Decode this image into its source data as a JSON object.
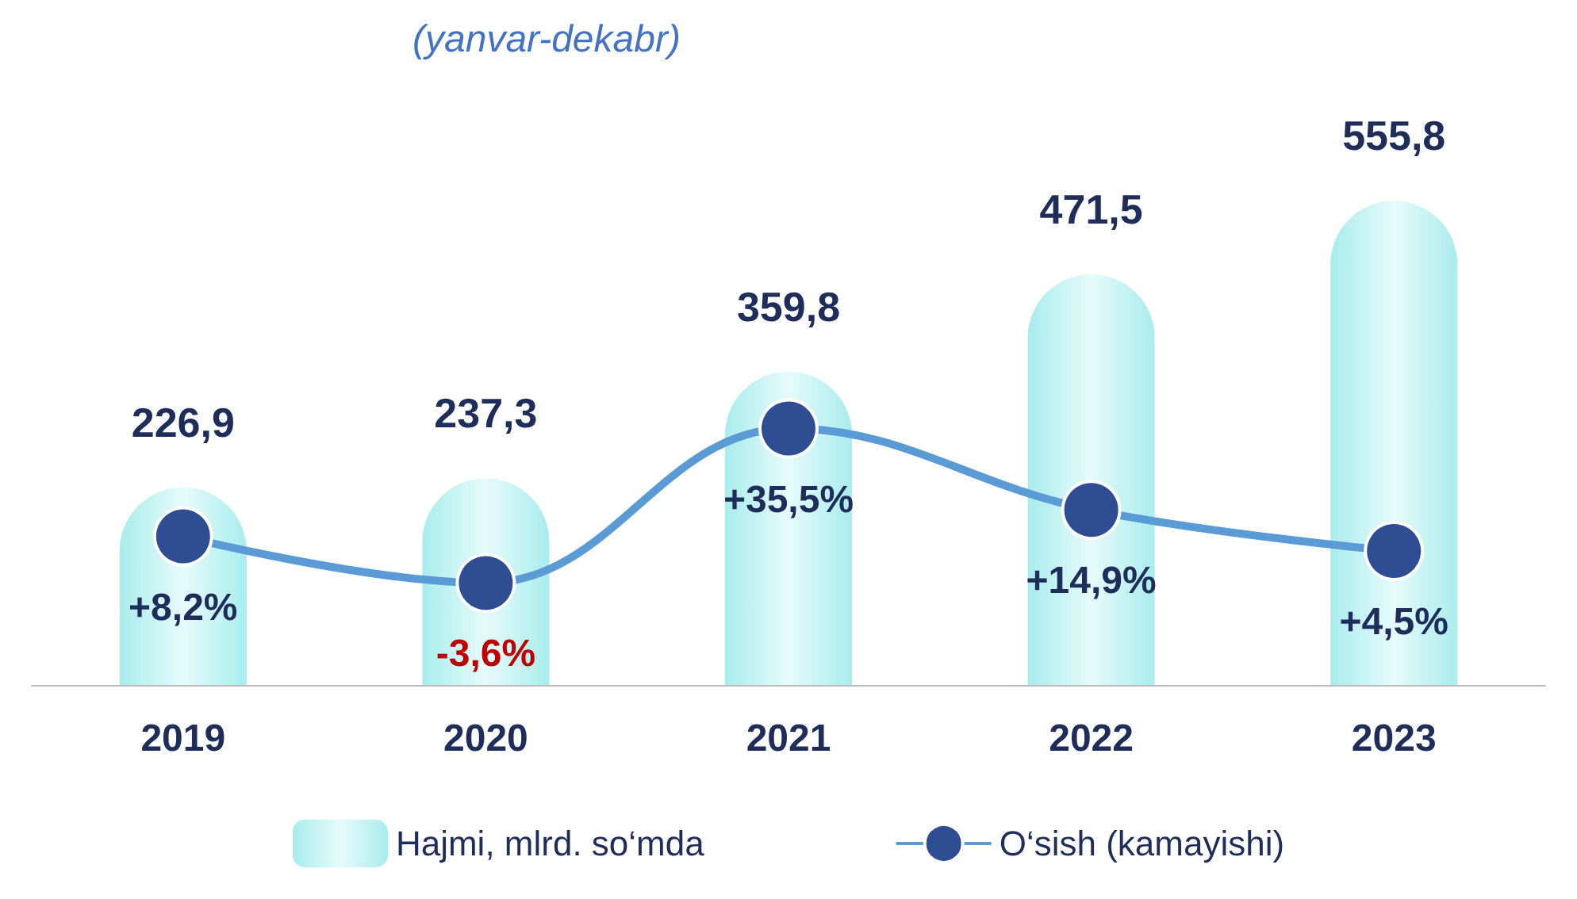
{
  "chart_data": {
    "type": "bar",
    "subtitle": "(yanvar-dekabr)",
    "categories": [
      "2019",
      "2020",
      "2021",
      "2022",
      "2023"
    ],
    "series": [
      {
        "name": "Hajmi, mlrd. so‘mda",
        "color": "#a9ecec",
        "values": [
          226.9,
          237.3,
          359.8,
          471.5,
          555.8
        ],
        "value_labels": [
          "226,9",
          "237,3",
          "359,8",
          "471,5",
          "555,8"
        ]
      },
      {
        "type": "line",
        "name": "O‘sish (kamayishi)",
        "color": "#5b9bd5",
        "axis": "y2",
        "marker": "circle",
        "values": [
          8.2,
          -3.6,
          35.5,
          14.9,
          4.5
        ],
        "value_labels": [
          "+8,2%",
          "-3,6%",
          "+35,5%",
          "+14,9%",
          "+4,5%"
        ]
      }
    ],
    "legend": "bottom"
  }
}
